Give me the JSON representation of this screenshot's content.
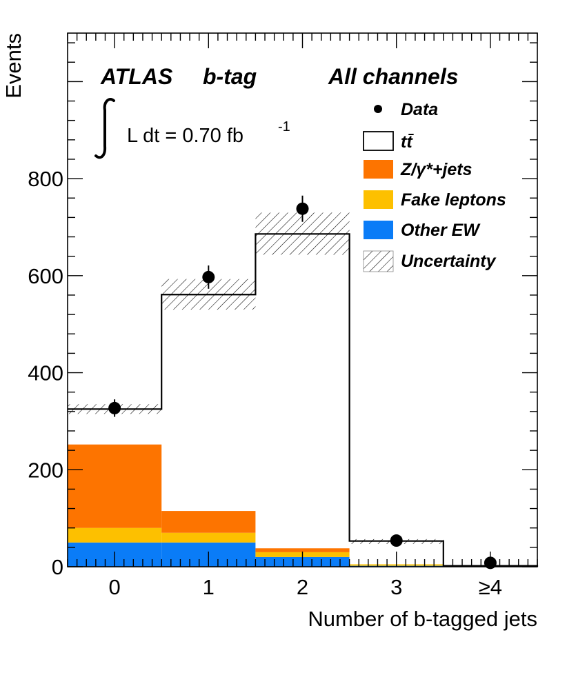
{
  "chart_data": {
    "type": "bar",
    "stacked": true,
    "categories": [
      "0",
      "1",
      "2",
      "3",
      "≥4"
    ],
    "xlabel": "Number of b-tagged jets",
    "ylabel": "Events",
    "ylim": [
      0,
      1100
    ],
    "yticks": [
      0,
      200,
      400,
      600,
      800
    ],
    "yminor_step": 40,
    "annotations": {
      "experiment": "ATLAS",
      "selection": "b-tag",
      "channel": "All channels",
      "lumi_prefix": "L dt = 0.70 fb",
      "lumi_exp": "-1"
    },
    "series": [
      {
        "name": "Other EW",
        "color": "#0a7cf7",
        "values": [
          50,
          50,
          20,
          2,
          0
        ]
      },
      {
        "name": "Fake leptons",
        "color": "#fdc000",
        "values": [
          30,
          20,
          10,
          3,
          0
        ]
      },
      {
        "name": "Z/γ*+jets",
        "color": "#fd7400",
        "values": [
          172,
          45,
          8,
          0,
          0
        ]
      },
      {
        "name": "tt̄",
        "color": "#ffffff",
        "values": [
          73,
          446,
          648,
          48,
          2
        ]
      }
    ],
    "total_prediction": [
      325,
      561,
      686,
      53,
      2
    ],
    "uncertainty": {
      "name": "Uncertainty",
      "low": [
        315,
        530,
        643,
        47,
        1
      ],
      "high": [
        335,
        593,
        730,
        57,
        3
      ]
    },
    "data": {
      "name": "Data",
      "values": [
        327,
        597,
        738,
        54,
        8
      ],
      "errors": [
        18,
        24,
        27,
        7,
        3
      ]
    },
    "legend": {
      "placement": "top-right",
      "entries": [
        "Data",
        "tt̄",
        "Z/γ*+jets",
        "Fake leptons",
        "Other EW",
        "Uncertainty"
      ]
    }
  }
}
